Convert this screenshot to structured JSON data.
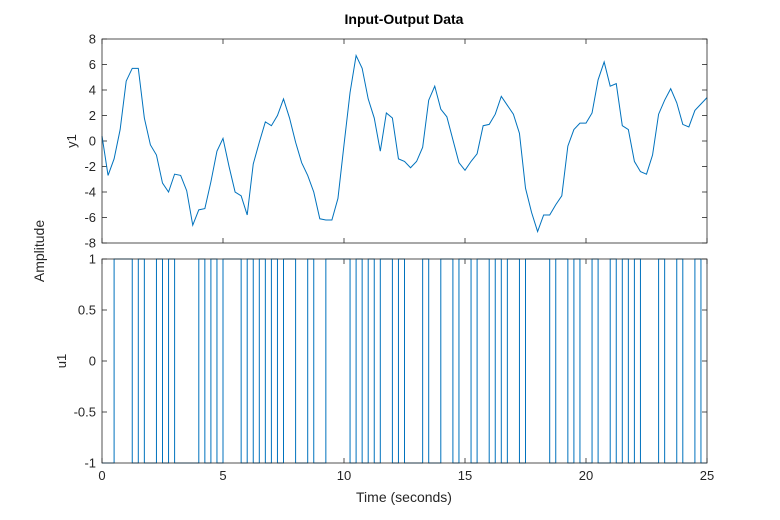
{
  "figure": {
    "title": "Input-Output Data",
    "xlabel": "Time (seconds)",
    "ylabel": "Amplitude"
  },
  "colors": {
    "line": "#0072BD",
    "axes": "#262626",
    "background": "#ffffff"
  },
  "chart_data": [
    {
      "type": "line",
      "ylabel": "y1",
      "xlim": [
        0,
        25
      ],
      "ylim": [
        -8,
        8
      ],
      "xticks": [
        0,
        5,
        10,
        15,
        20,
        25
      ],
      "yticks": [
        -8,
        -6,
        -4,
        -2,
        0,
        2,
        4,
        6,
        8
      ],
      "ytick_labels": [
        "-8",
        "-6",
        "-4",
        "-2",
        "0",
        "2",
        "4",
        "6",
        "8"
      ],
      "xtick_labels_visible": false,
      "grid": false,
      "series": [
        {
          "x": [
            0,
            0.25,
            0.5,
            0.75,
            1,
            1.25,
            1.5,
            1.75,
            2,
            2.25,
            2.5,
            2.75,
            3,
            3.25,
            3.5,
            3.75,
            4,
            4.25,
            4.5,
            4.75,
            5,
            5.25,
            5.5,
            5.75,
            6,
            6.25,
            6.5,
            6.75,
            7,
            7.25,
            7.5,
            7.75,
            8,
            8.25,
            8.5,
            8.75,
            9,
            9.25,
            9.5,
            9.75,
            10,
            10.25,
            10.5,
            10.75,
            11,
            11.25,
            11.5,
            11.75,
            12,
            12.25,
            12.5,
            12.75,
            13,
            13.25,
            13.5,
            13.75,
            14,
            14.25,
            14.5,
            14.75,
            15,
            15.25,
            15.5,
            15.75,
            16,
            16.25,
            16.5,
            16.75,
            17,
            17.25,
            17.5,
            17.75,
            18,
            18.25,
            18.5,
            18.75,
            19,
            19.25,
            19.5,
            19.75,
            20,
            20.25,
            20.5,
            20.75,
            21,
            21.25,
            21.5,
            21.75,
            22,
            22.25,
            22.5,
            22.75,
            23,
            23.25,
            23.5,
            23.75,
            24,
            24.25,
            24.5,
            24.75,
            25
          ],
          "y": [
            0.4,
            -2.7,
            -1.4,
            0.9,
            4.7,
            5.7,
            5.7,
            1.8,
            -0.3,
            -1.1,
            -3.3,
            -4.0,
            -2.6,
            -2.7,
            -3.9,
            -6.6,
            -5.4,
            -5.3,
            -3.2,
            -0.8,
            0.2,
            -2.0,
            -4.0,
            -4.3,
            -5.8,
            -1.8,
            -0.1,
            1.5,
            1.2,
            2.0,
            3.3,
            1.8,
            -0.1,
            -1.7,
            -2.7,
            -4.0,
            -6.1,
            -6.2,
            -6.2,
            -4.5,
            -0.3,
            3.8,
            6.7,
            5.7,
            3.3,
            1.8,
            -0.8,
            2.2,
            1.8,
            -1.4,
            -1.6,
            -2.1,
            -1.6,
            -0.5,
            3.2,
            4.3,
            2.5,
            1.9,
            0.1,
            -1.7,
            -2.3,
            -1.6,
            -1.0,
            1.2,
            1.3,
            2.1,
            3.5,
            2.8,
            2.1,
            0.6,
            -3.7,
            -5.6,
            -7.1,
            -5.8,
            -5.8,
            -5.0,
            -4.3,
            -0.4,
            0.9,
            1.4,
            1.4,
            2.2,
            4.8,
            6.2,
            4.3,
            4.5,
            1.2,
            0.9,
            -1.6,
            -2.4,
            -2.6,
            -1.1,
            2.1,
            3.2,
            4.1,
            3.0,
            1.3,
            1.1,
            2.4,
            2.9,
            3.4
          ]
        }
      ]
    },
    {
      "type": "line",
      "ylabel": "u1",
      "xlim": [
        0,
        25
      ],
      "ylim": [
        -1,
        1
      ],
      "xticks": [
        0,
        5,
        10,
        15,
        20,
        25
      ],
      "xtick_labels": [
        "0",
        "5",
        "10",
        "15",
        "20",
        "25"
      ],
      "yticks": [
        -1,
        -0.5,
        0,
        0.5,
        1
      ],
      "ytick_labels": [
        "-1",
        "-0.5",
        "0",
        "0.5",
        "1"
      ],
      "grid": false,
      "interpolation": "zero-order-hold",
      "series": [
        {
          "switch_times": [
            0.5,
            1.25,
            1.5,
            1.75,
            2.25,
            2.5,
            2.75,
            3.0,
            4.0,
            4.25,
            4.5,
            4.75,
            5.0,
            5.75,
            6.0,
            6.25,
            6.5,
            6.75,
            7.0,
            7.25,
            7.5,
            8.0,
            8.5,
            8.75,
            9.25,
            10.25,
            10.5,
            10.75,
            11.0,
            11.25,
            11.5,
            12.0,
            12.25,
            12.5,
            13.25,
            13.5,
            14.0,
            14.5,
            14.75,
            15.25,
            15.5,
            16.0,
            16.25,
            16.5,
            16.75,
            17.25,
            17.5,
            18.5,
            18.75,
            19.25,
            19.5,
            19.75,
            20.25,
            20.5,
            21.0,
            21.25,
            21.5,
            21.75,
            22.0,
            22.25,
            23.0,
            23.25,
            23.75,
            24.0,
            24.5,
            24.75
          ],
          "initial_value": -1,
          "final_value": 1
        }
      ]
    }
  ]
}
